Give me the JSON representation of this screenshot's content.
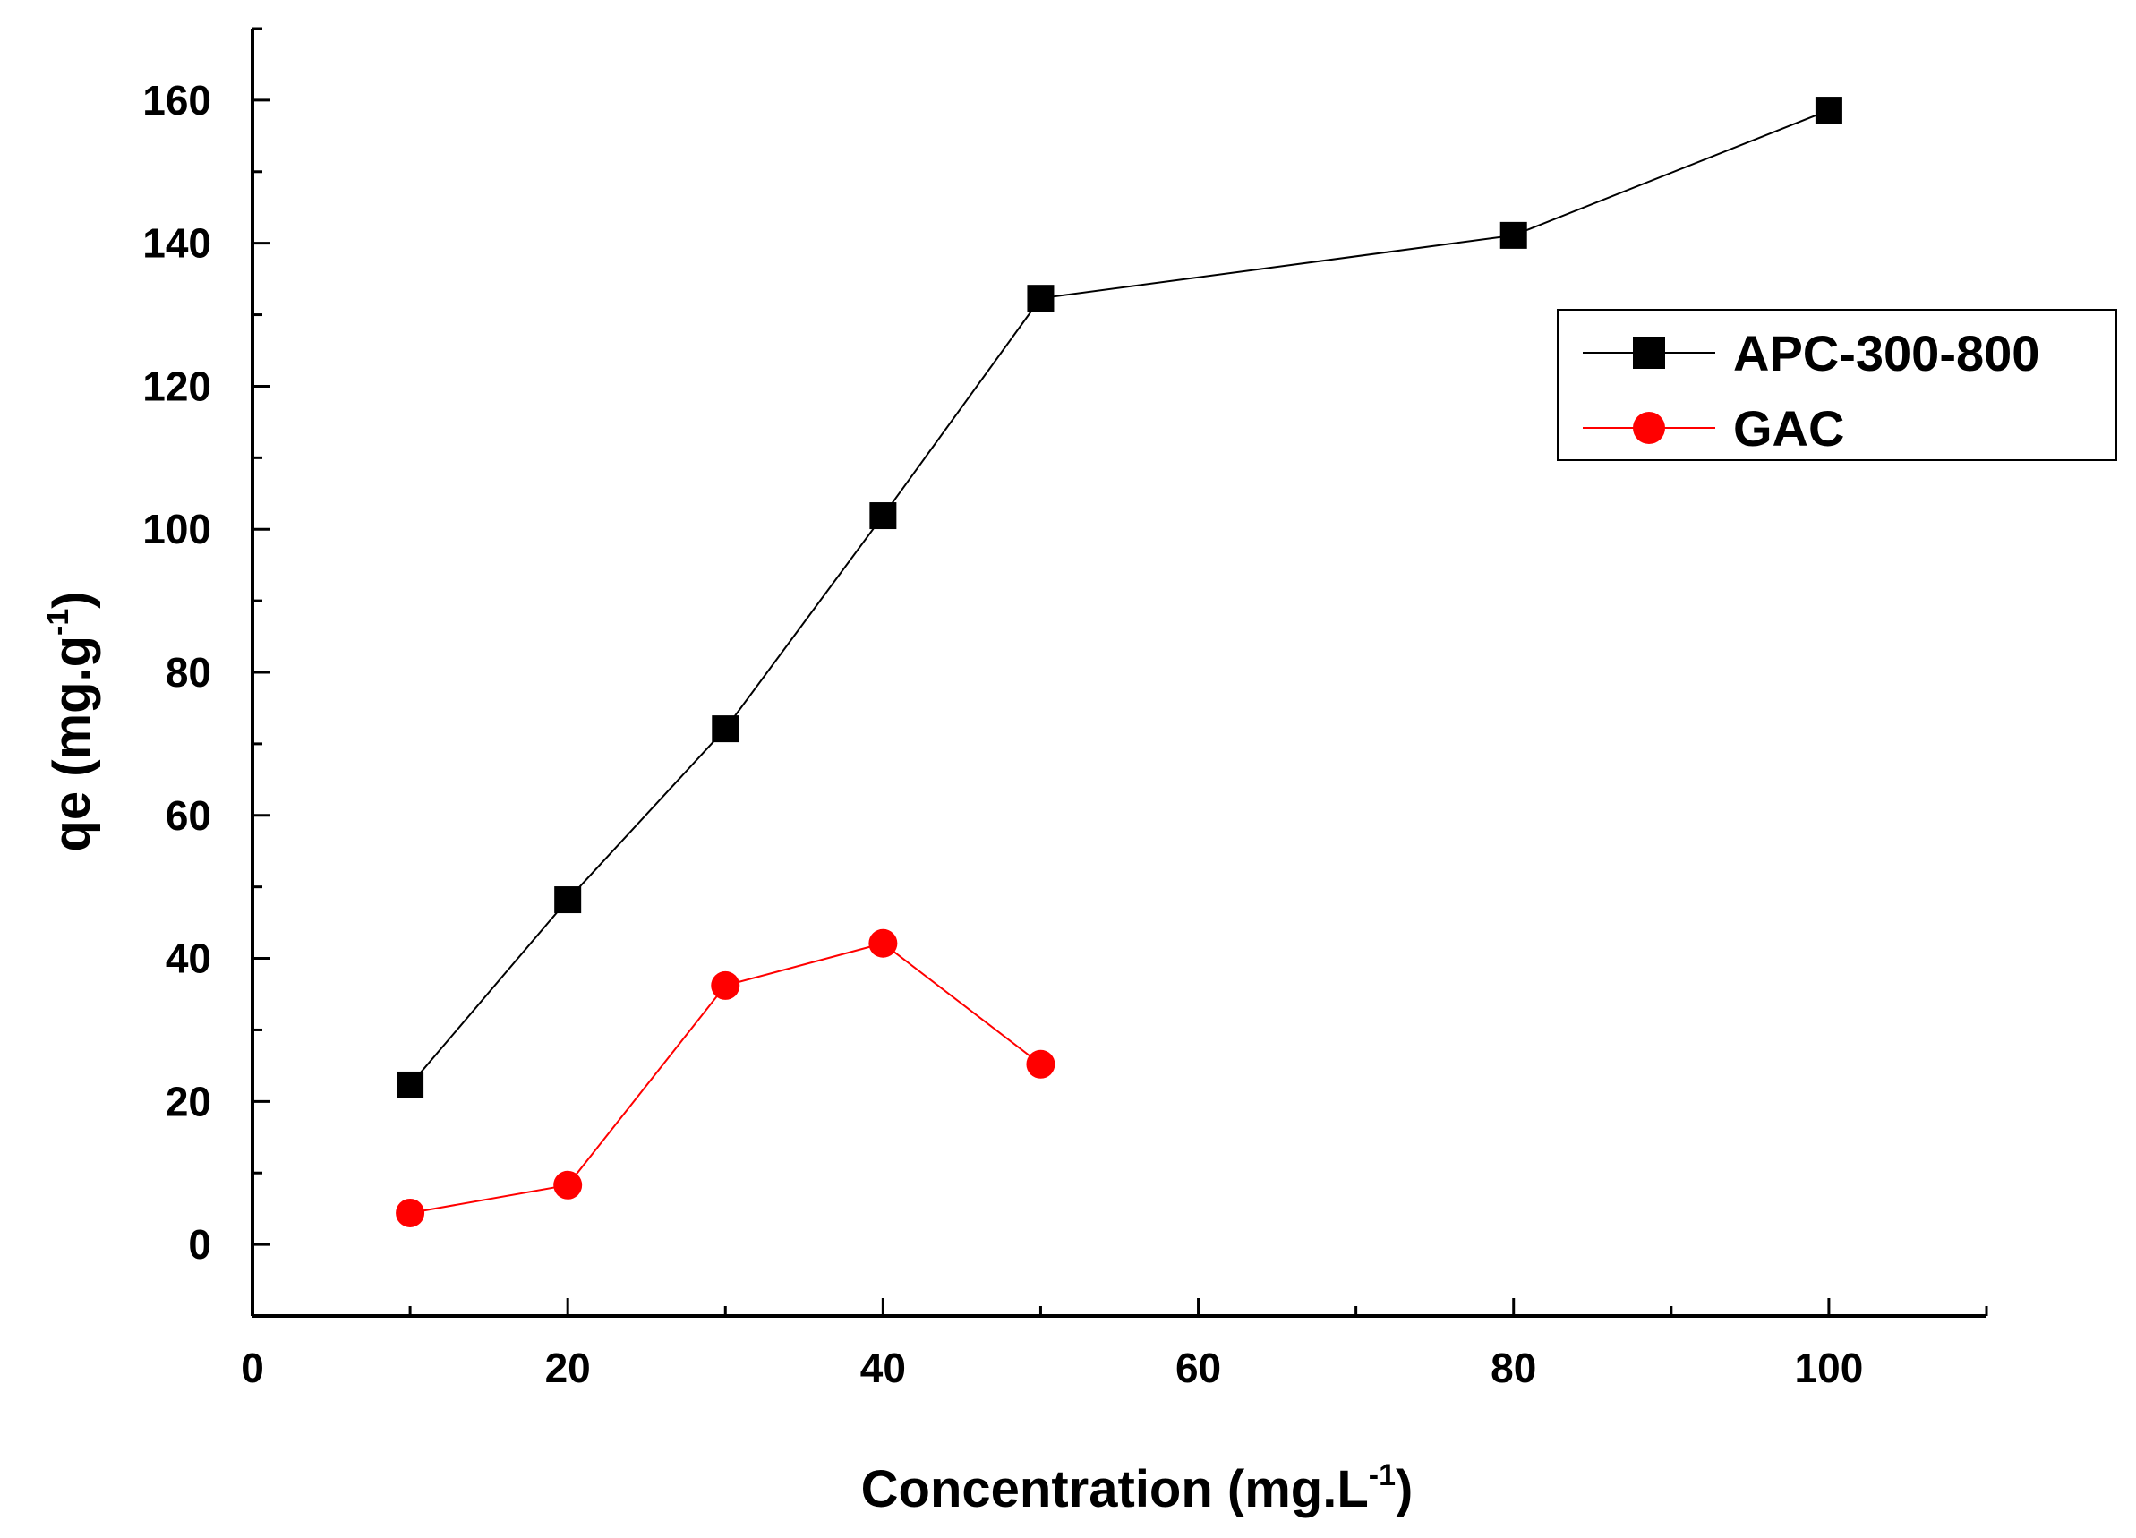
{
  "chart_data": {
    "type": "line",
    "title": "",
    "xlabel": {
      "main": "Concentration (mg.L",
      "sup": "-1",
      "end": ")"
    },
    "ylabel": {
      "main": "qe (mg.g",
      "sup": "-1",
      "end": ")"
    },
    "xlim": [
      0,
      110
    ],
    "ylim": [
      -10,
      170
    ],
    "x_ticks": [
      0,
      20,
      40,
      60,
      80,
      100
    ],
    "y_ticks": [
      0,
      20,
      40,
      60,
      80,
      100,
      120,
      140,
      160
    ],
    "x_minor_step": 10,
    "y_minor_step": 10,
    "grid": false,
    "legend_position": "top-right",
    "series": [
      {
        "name": "APC-300-800",
        "marker": "square",
        "color": "#000000",
        "x": [
          10,
          20,
          30,
          40,
          50,
          80,
          100
        ],
        "y": [
          22.3,
          48.2,
          72.1,
          101.9,
          132.3,
          141.1,
          158.6
        ]
      },
      {
        "name": "GAC",
        "marker": "circle",
        "color": "#ff0000",
        "x": [
          10,
          20,
          30,
          40,
          50
        ],
        "y": [
          4.4,
          8.3,
          36.2,
          42.1,
          25.2
        ]
      }
    ]
  }
}
